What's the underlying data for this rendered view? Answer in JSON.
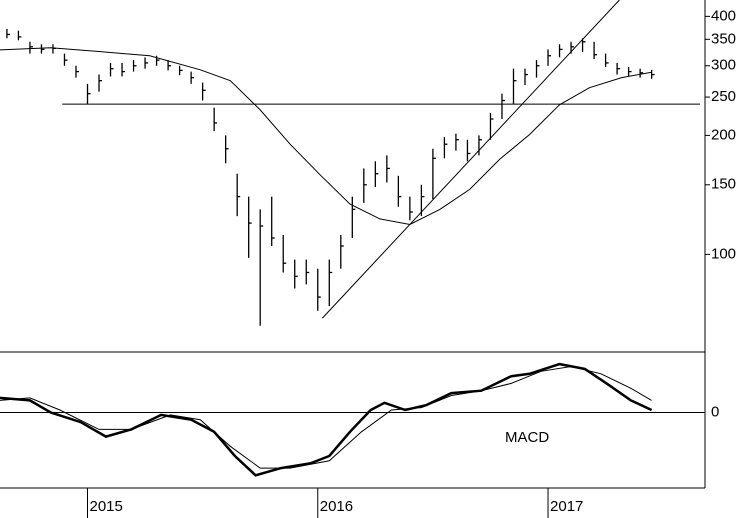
{
  "chart_data": [
    {
      "type": "ohlc",
      "log": true,
      "color": "#000000",
      "x": [
        2014.65,
        2014.7,
        2014.75,
        2014.8,
        2014.85,
        2014.9,
        2014.95,
        2015.0,
        2015.05,
        2015.1,
        2015.15,
        2015.2,
        2015.25,
        2015.3,
        2015.35,
        2015.4,
        2015.45,
        2015.5,
        2015.55,
        2015.6,
        2015.65,
        2015.7,
        2015.75,
        2015.8,
        2015.85,
        2015.9,
        2015.95,
        2016.0,
        2016.05,
        2016.1,
        2016.15,
        2016.2,
        2016.25,
        2016.3,
        2016.35,
        2016.4,
        2016.45,
        2016.5,
        2016.55,
        2016.6,
        2016.65,
        2016.7,
        2016.75,
        2016.8,
        2016.85,
        2016.9,
        2016.95,
        2017.0,
        2017.05,
        2017.1,
        2017.15,
        2017.2,
        2017.25,
        2017.3,
        2017.35,
        2017.4,
        2017.45
      ],
      "high": [
        372,
        368,
        345,
        340,
        340,
        322,
        300,
        270,
        285,
        305,
        305,
        310,
        315,
        318,
        310,
        300,
        290,
        272,
        235,
        200,
        160,
        140,
        130,
        140,
        112,
        97,
        97,
        92,
        97,
        112,
        140,
        165,
        172,
        178,
        158,
        140,
        150,
        185,
        198,
        202,
        195,
        200,
        228,
        255,
        295,
        295,
        310,
        330,
        340,
        345,
        352,
        345,
        322,
        305,
        298,
        295,
        293
      ],
      "low": [
        352,
        348,
        322,
        322,
        322,
        300,
        280,
        240,
        258,
        282,
        282,
        290,
        295,
        300,
        292,
        284,
        270,
        245,
        205,
        170,
        125,
        98,
        66,
        105,
        90,
        82,
        84,
        72,
        74,
        92,
        110,
        135,
        148,
        152,
        132,
        122,
        125,
        138,
        175,
        183,
        172,
        178,
        195,
        220,
        240,
        268,
        280,
        300,
        315,
        322,
        325,
        312,
        298,
        285,
        282,
        280,
        278
      ],
      "close": [
        360,
        355,
        335,
        330,
        332,
        310,
        290,
        255,
        275,
        295,
        290,
        300,
        305,
        310,
        300,
        292,
        280,
        260,
        215,
        185,
        140,
        120,
        118,
        110,
        95,
        88,
        90,
        78,
        90,
        105,
        130,
        150,
        160,
        165,
        140,
        128,
        140,
        175,
        190,
        195,
        180,
        195,
        220,
        245,
        275,
        285,
        300,
        318,
        330,
        335,
        345,
        320,
        305,
        295,
        290,
        288,
        285
      ],
      "lines": [
        {
          "x": [
            2014.62,
            2014.84,
            2015.05,
            2015.27,
            2015.49,
            2015.62,
            2015.75,
            2015.88,
            2016.01,
            2016.14,
            2016.27,
            2016.4,
            2016.53,
            2016.66,
            2016.79,
            2016.92,
            2017.05,
            2017.18,
            2017.32,
            2017.45
          ],
          "values": [
            329,
            333,
            326,
            318,
            293,
            275,
            232,
            190,
            159,
            134,
            123,
            119,
            130,
            146,
            174,
            201,
            239,
            264,
            280,
            289
          ]
        },
        {
          "x": [
            2016.02,
            2017.31
          ],
          "values": [
            69,
            440
          ]
        },
        {
          "x": [
            2014.89,
            2017.66
          ],
          "values": [
            240,
            240
          ]
        }
      ],
      "xlim": [
        2014.62,
        2017.66
      ],
      "ylim": [
        59,
        440
      ],
      "yticks": [
        100,
        150,
        200,
        250,
        300,
        350,
        400
      ]
    },
    {
      "type": "line",
      "annotation": "MACD",
      "series": [
        {
          "color": "#000000",
          "width": 2.5,
          "x": [
            2014.62,
            2014.75,
            2014.84,
            2014.97,
            2015.08,
            2015.19,
            2015.32,
            2015.45,
            2015.55,
            2015.64,
            2015.73,
            2015.84,
            2015.97,
            2016.05,
            2016.14,
            2016.23,
            2016.29,
            2016.38,
            2016.47,
            2016.58,
            2016.71,
            2016.84,
            2016.92,
            2017.05,
            2017.16,
            2017.27,
            2017.36,
            2017.45
          ],
          "values": [
            6,
            5,
            0,
            -4,
            -10,
            -7,
            -1,
            -3,
            -8,
            -18,
            -26,
            -23,
            -21,
            -18,
            -8,
            1,
            4,
            1,
            3,
            8,
            9,
            15,
            16,
            20,
            18,
            11,
            5,
            1
          ]
        },
        {
          "color": "#000000",
          "width": 1,
          "x": [
            2014.62,
            2014.75,
            2014.88,
            2015.05,
            2015.19,
            2015.36,
            2015.49,
            2015.62,
            2015.75,
            2015.88,
            2016.05,
            2016.19,
            2016.32,
            2016.45,
            2016.58,
            2016.71,
            2016.84,
            2016.97,
            2017.1,
            2017.23,
            2017.36,
            2017.45
          ],
          "values": [
            5,
            6,
            1,
            -7,
            -7,
            -1,
            -3,
            -14,
            -23,
            -23,
            -20,
            -8,
            1,
            2,
            7,
            9,
            12,
            17,
            19,
            16,
            10,
            5
          ]
        }
      ],
      "xlim": [
        2014.62,
        2017.66
      ],
      "ylim": [
        -30,
        25
      ],
      "yticks": [
        0
      ],
      "xticks": [
        2015,
        2016,
        2017
      ]
    }
  ]
}
